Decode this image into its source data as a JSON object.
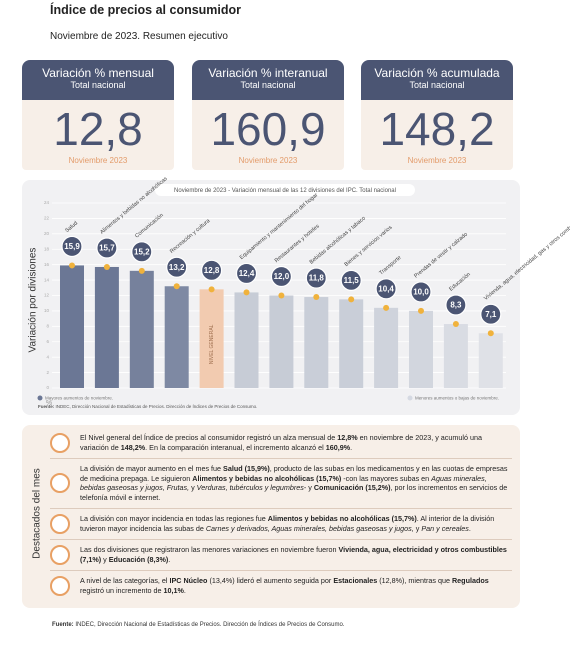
{
  "header": {
    "title": "Índice de precios al consumidor",
    "subtitle": "Noviembre de 2023. Resumen ejecutivo"
  },
  "kpis": [
    {
      "title": "Variación % mensual",
      "subtitle": "Total nacional",
      "value": 12.8,
      "value_label": "12,8",
      "period": "Noviembre 2023"
    },
    {
      "title": "Variación % interanual",
      "subtitle": "Total nacional",
      "value": 160.9,
      "value_label": "160,9",
      "period": "Noviembre 2023"
    },
    {
      "title": "Variación % acumulada",
      "subtitle": "Total nacional",
      "value": 148.2,
      "value_label": "148,2",
      "period": "Noviembre 2023"
    }
  ],
  "chart_data": {
    "type": "bar",
    "title": "Noviembre de 2023 - Variación mensual de las 12 divisiones del IPC. Total nacional",
    "y_label": "Variación por divisiones",
    "y_unit": "%",
    "categories": [
      "Salud",
      "Alimentos y bebidas no alcohólicas",
      "Comunicación",
      "Recreación y cultura",
      "NIVEL GENERAL",
      "Equipamiento y mantenimiento del hogar",
      "Restaurantes y hoteles",
      "Bebidas alcohólicas y tabaco",
      "Bienes y servicios varios",
      "Transporte",
      "Prendas de vestir y calzado",
      "Educación",
      "Vivienda, agua, electricidad, gas y otros combustibles"
    ],
    "values": [
      15.9,
      15.7,
      15.2,
      13.2,
      12.8,
      12.4,
      12.0,
      11.8,
      11.5,
      10.4,
      10.0,
      8.3,
      7.1
    ],
    "value_labels": [
      "15,9",
      "15,7",
      "15,2",
      "13,2",
      "12,8",
      "12,4",
      "12,0",
      "11,8",
      "11,5",
      "10,4",
      "10,0",
      "8,3",
      "7,1"
    ],
    "colors": [
      "#6b7795",
      "#6b7795",
      "#76819c",
      "#7e89a3",
      "#f2cbb0",
      "#c7ccd6",
      "#c7ccd6",
      "#c9ced8",
      "#c9ced8",
      "#cfd3dc",
      "#d2d6de",
      "#d9dce3",
      "#dfe1e7"
    ],
    "ylim": [
      0,
      24
    ],
    "yticks": [
      0,
      2,
      4,
      6,
      8,
      10,
      12,
      14,
      16,
      18,
      20,
      22,
      24
    ],
    "grid": true,
    "legend": [
      {
        "label": "Mayores aumentos de noviembre.",
        "color": "#6b7795"
      },
      {
        "label": "Menores aumentos o bajas de noviembre.",
        "color": "#d5d9e2"
      }
    ],
    "source": [
      {
        "text": "Fuente:",
        "style": "bold"
      },
      {
        "text": " INDEC, Dirección Nacional de Estadísticas de Precios. Dirección de Índices de Precios de Consumo.",
        "style": "normal"
      }
    ]
  },
  "highlights": {
    "title": "Destacados del mes",
    "items": [
      [
        {
          "text": "El Nivel general del Índice de precios al consumidor registró un alza mensual de ",
          "style": "normal"
        },
        {
          "text": "12,8%",
          "style": "bold"
        },
        {
          "text": " en noviembre de 2023, y acumuló una variación de ",
          "style": "normal"
        },
        {
          "text": "148,2%",
          "style": "bold"
        },
        {
          "text": ". En la comparación interanual, el incremento alcanzó el ",
          "style": "normal"
        },
        {
          "text": "160,9%",
          "style": "bold"
        },
        {
          "text": ".",
          "style": "normal"
        }
      ],
      [
        {
          "text": "La división de mayor aumento en el mes fue ",
          "style": "normal"
        },
        {
          "text": "Salud (15,9%)",
          "style": "bold"
        },
        {
          "text": ", producto de las subas en los medicamentos y en las cuotas de empresas de medicina prepaga. Le siguieron ",
          "style": "normal"
        },
        {
          "text": "Alimentos y bebidas no alcohólicas (15,7%)",
          "style": "bold"
        },
        {
          "text": " -con las mayores subas en ",
          "style": "normal"
        },
        {
          "text": "Aguas minerales, bebidas gaseosas y jugos, Frutas,",
          "style": "italic"
        },
        {
          "text": " y ",
          "style": "normal"
        },
        {
          "text": "Verduras, tubérculos y legumbres",
          "style": "italic"
        },
        {
          "text": "- y ",
          "style": "normal"
        },
        {
          "text": "Comunicación (15,2%)",
          "style": "bold"
        },
        {
          "text": ", por los incrementos en servicios de telefonía móvil e internet.",
          "style": "normal"
        }
      ],
      [
        {
          "text": "La división con mayor incidencia en todas las regiones fue ",
          "style": "normal"
        },
        {
          "text": "Alimentos y bebidas no alcohólicas (15,7%)",
          "style": "bold"
        },
        {
          "text": ". Al interior de la división tuvieron mayor incidencia las subas de ",
          "style": "normal"
        },
        {
          "text": "Carnes y derivados, Aguas minerales, bebidas gaseosas y jugos,",
          "style": "italic"
        },
        {
          "text": " y ",
          "style": "normal"
        },
        {
          "text": "Pan y cereales",
          "style": "italic"
        },
        {
          "text": ".",
          "style": "normal"
        }
      ],
      [
        {
          "text": "Las dos divisiones que registraron las menores variaciones en noviembre fueron ",
          "style": "normal"
        },
        {
          "text": "Vivienda, agua, electricidad y otros combustibles (7,1%)",
          "style": "bold"
        },
        {
          "text": " y ",
          "style": "normal"
        },
        {
          "text": "Educación (8,3%)",
          "style": "bold"
        },
        {
          "text": ".",
          "style": "normal"
        }
      ],
      [
        {
          "text": "A nivel de las categorías, el ",
          "style": "normal"
        },
        {
          "text": "IPC Núcleo",
          "style": "bold"
        },
        {
          "text": " (13,4%) lideró el aumento seguida por ",
          "style": "normal"
        },
        {
          "text": "Estacionales",
          "style": "bold"
        },
        {
          "text": " (12,8%), mientras que ",
          "style": "normal"
        },
        {
          "text": "Regulados",
          "style": "bold"
        },
        {
          "text": " registró un incremento de ",
          "style": "normal"
        },
        {
          "text": "10,1%",
          "style": "bold"
        },
        {
          "text": ".",
          "style": "normal"
        }
      ]
    ]
  },
  "footer": [
    {
      "text": "Fuente:",
      "style": "bold"
    },
    {
      "text": " INDEC, Dirección Nacional de Estadísticas de Precios. Dirección de Índices de Precios de Consumo.",
      "style": "normal"
    }
  ]
}
